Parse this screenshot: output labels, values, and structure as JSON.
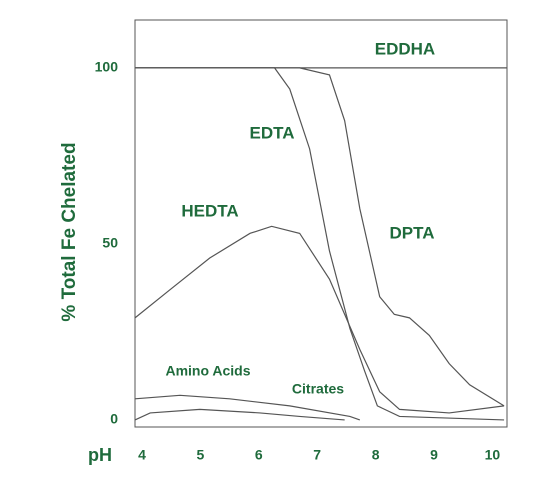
{
  "chart_data": {
    "type": "line",
    "ylabel": "% Total Fe Chelated",
    "xlabel": "pH",
    "xlim": [
      3.88,
      10.25
    ],
    "ylim": [
      -2,
      113.6
    ],
    "xticks": [
      4,
      5,
      6,
      7,
      8,
      9,
      10
    ],
    "yticks": [
      0,
      50,
      100
    ],
    "series": [
      {
        "name": "EDDHA",
        "color": "#555555",
        "x": [
          3.88,
          10.25
        ],
        "values": [
          100,
          100
        ]
      },
      {
        "name": "EDTA",
        "color": "#555555",
        "x": [
          3.88,
          6.27,
          6.53,
          6.87,
          7.21,
          7.56,
          7.81,
          8.03,
          8.41,
          10.2
        ],
        "values": [
          100,
          100,
          94,
          77,
          48,
          26,
          14,
          4,
          1,
          0
        ]
      },
      {
        "name": "DPTA",
        "color": "#555555",
        "x": [
          3.88,
          6.7,
          7.21,
          7.47,
          7.73,
          8.07,
          8.32,
          8.58,
          8.92,
          9.26,
          9.61,
          10.2
        ],
        "values": [
          100,
          100,
          98,
          85,
          60,
          35,
          30,
          29,
          24,
          16,
          10,
          4
        ]
      },
      {
        "name": "HEDTA",
        "color": "#555555",
        "x": [
          3.88,
          4.48,
          5.16,
          5.85,
          6.22,
          6.7,
          7.21,
          7.73,
          8.07,
          8.41,
          9.26,
          10.2
        ],
        "values": [
          29,
          37,
          46,
          53,
          55,
          53,
          40,
          20,
          8,
          3,
          2,
          4
        ]
      },
      {
        "name": "Amino Acids",
        "color": "#555555",
        "x": [
          3.88,
          4.65,
          5.5,
          6.53,
          7.56,
          7.73
        ],
        "values": [
          6,
          7,
          6,
          4,
          1,
          0
        ]
      },
      {
        "name": "Citrates",
        "color": "#555555",
        "x": [
          3.88,
          4.14,
          4.99,
          6.02,
          6.7,
          7.47
        ],
        "values": [
          0,
          2,
          3,
          2,
          1,
          0
        ]
      }
    ]
  }
}
